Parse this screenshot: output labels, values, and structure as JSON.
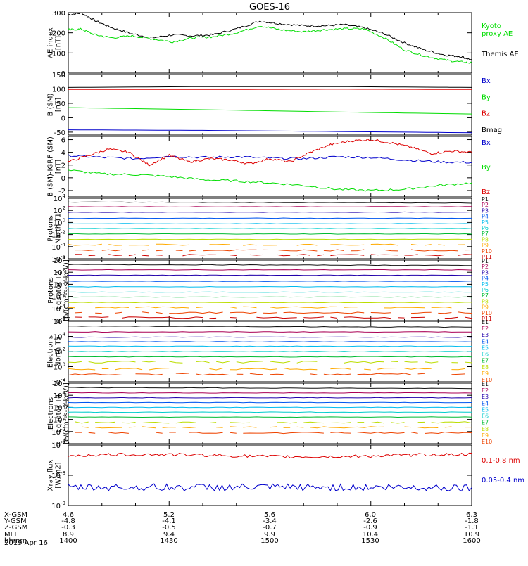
{
  "title": "GOES-16",
  "date_label": "2019 Apr 16",
  "orbit": {
    "row_labels": [
      "X-GSM",
      "Y-GSM",
      "Z-GSM",
      "MLT",
      "hhmm"
    ],
    "columns": [
      [
        "4.6",
        "-4.8",
        "-0.3",
        "8.9",
        "1400"
      ],
      [
        "5.2",
        "-4.1",
        "-0.5",
        "9.4",
        "1430"
      ],
      [
        "5.6",
        "-3.4",
        "-0.7",
        "9.9",
        "1500"
      ],
      [
        "6.0",
        "-2.6",
        "-0.9",
        "10.4",
        "1530"
      ],
      [
        "6.3",
        "-1.8",
        "-1.1",
        "10.9",
        "1600"
      ]
    ]
  },
  "colors": {
    "black": "#000000",
    "green": "#00dd00",
    "red": "#dd0000",
    "blue": "#0000cc",
    "flux": [
      "#111111",
      "#aa0055",
      "#2200aa",
      "#0055ee",
      "#00bbee",
      "#00cccc",
      "#00bb33",
      "#bbdd00",
      "#ffaa00",
      "#ee4400",
      "#cc0000"
    ]
  },
  "chart_data": [
    {
      "type": "line",
      "ylabel": [
        "AE index",
        "[nT]"
      ],
      "ylim": [
        0,
        300
      ],
      "yticks": [
        "0",
        "100",
        "200",
        "300"
      ],
      "xlim": [
        0,
        120
      ],
      "legend": [
        {
          "text": "Kyoto",
          "color": "green"
        },
        {
          "text": "proxy AE",
          "color": "green"
        },
        {
          "text": "Themis AE",
          "color": "black"
        }
      ],
      "series": [
        {
          "name": "Themis AE",
          "color": "black",
          "x": [
            0,
            4,
            8,
            13,
            19,
            25,
            31,
            37,
            43,
            50,
            57,
            63,
            70,
            76,
            82,
            88,
            94,
            100,
            106,
            112,
            117,
            120
          ],
          "y": [
            290,
            298,
            260,
            225,
            195,
            175,
            190,
            185,
            190,
            220,
            258,
            245,
            235,
            235,
            240,
            225,
            195,
            150,
            115,
            90,
            82,
            65
          ]
        },
        {
          "name": "Kyoto proxy AE",
          "color": "green",
          "x": [
            0,
            4,
            8,
            13,
            19,
            25,
            31,
            37,
            43,
            50,
            57,
            63,
            70,
            76,
            82,
            88,
            94,
            100,
            106,
            112,
            117,
            120
          ],
          "y": [
            215,
            218,
            190,
            175,
            185,
            170,
            155,
            175,
            180,
            200,
            235,
            215,
            205,
            215,
            220,
            220,
            175,
            115,
            85,
            65,
            55,
            50
          ]
        }
      ]
    },
    {
      "type": "line",
      "ylabel": [
        "B (SM)",
        "[nT]"
      ],
      "ylim": [
        -60,
        150
      ],
      "yticks": [
        "-50",
        "0",
        "50",
        "100",
        "150"
      ],
      "xlim": [
        0,
        120
      ],
      "legend": [
        {
          "text": "Bx",
          "color": "blue"
        },
        {
          "text": "By",
          "color": "green"
        },
        {
          "text": "Bz",
          "color": "red"
        },
        {
          "text": "Bmag",
          "color": "black"
        }
      ],
      "series": [
        {
          "name": "Bmag",
          "color": "black",
          "x": [
            0,
            40,
            80,
            120
          ],
          "y": [
            105,
            108,
            108,
            105
          ]
        },
        {
          "name": "Bz",
          "color": "red",
          "x": [
            0,
            40,
            80,
            120
          ],
          "y": [
            98,
            98,
            99,
            98
          ]
        },
        {
          "name": "By",
          "color": "green",
          "x": [
            0,
            40,
            80,
            120
          ],
          "y": [
            35,
            28,
            20,
            13
          ]
        },
        {
          "name": "Bx",
          "color": "blue",
          "x": [
            0,
            40,
            80,
            120
          ],
          "y": [
            -42,
            -44,
            -48,
            -52
          ]
        }
      ]
    },
    {
      "type": "line",
      "ylabel": [
        "B (SM)-IGRF (SM)",
        "[nT]"
      ],
      "ylim": [
        -3,
        6.5
      ],
      "yticks": [
        "-2",
        "0",
        "2",
        "4",
        "6"
      ],
      "xlim": [
        0,
        120
      ],
      "legend": [
        {
          "text": "Bx",
          "color": "blue"
        },
        {
          "text": "By",
          "color": "green"
        },
        {
          "text": "Bz",
          "color": "red"
        }
      ],
      "series": [
        {
          "name": "Bx",
          "color": "blue",
          "x": [
            0,
            10,
            20,
            30,
            40,
            50,
            60,
            70,
            80,
            90,
            100,
            110,
            120
          ],
          "y": [
            3.5,
            3.2,
            3.0,
            3.4,
            3.2,
            3.3,
            3.1,
            3.0,
            3.3,
            3.2,
            2.8,
            2.5,
            2.4
          ]
        },
        {
          "name": "By",
          "color": "green",
          "x": [
            0,
            10,
            20,
            30,
            40,
            50,
            60,
            70,
            80,
            90,
            100,
            110,
            120
          ],
          "y": [
            1.2,
            0.6,
            0.5,
            0.2,
            -0.3,
            -0.5,
            -0.8,
            -1.2,
            -1.8,
            -2.0,
            -1.8,
            -1.2,
            -0.8
          ]
        },
        {
          "name": "Bz",
          "color": "red",
          "x": [
            0,
            6,
            12,
            18,
            24,
            30,
            36,
            42,
            48,
            54,
            60,
            66,
            72,
            78,
            84,
            90,
            96,
            102,
            108,
            114,
            120
          ],
          "y": [
            2.5,
            3.5,
            4.5,
            4.0,
            2.0,
            3.5,
            2.5,
            3.0,
            2.8,
            2.2,
            3.0,
            2.5,
            4.0,
            5.2,
            5.8,
            6.0,
            5.5,
            4.8,
            3.8,
            4.2,
            4.0
          ]
        }
      ]
    },
    {
      "type": "line",
      "log": true,
      "ylabel": [
        "Protons",
        "North T1"
      ],
      "ylim": [
        -6,
        4
      ],
      "ytick_exps": [
        "-6",
        "-4",
        "-2",
        "0",
        "2",
        "4"
      ],
      "xlim": [
        0,
        120
      ],
      "legend": [
        "P1",
        "P2",
        "P3",
        "P4",
        "P5",
        "P6",
        "P7",
        "P8",
        "P9",
        "P10",
        "P11"
      ],
      "levels": [
        3.3,
        2.6,
        1.7,
        0.7,
        -0.2,
        -1.0,
        -1.9,
        -2.8,
        -3.7,
        -4.6,
        -5.4
      ]
    },
    {
      "type": "line",
      "log": true,
      "ylabel": [
        "Protons",
        "Equator T2",
        "[p/(cm²-s-sr-keV)]"
      ],
      "ylim": [
        -6,
        4
      ],
      "ytick_exps": [
        "-6",
        "-4",
        "-2",
        "0",
        "2",
        "4"
      ],
      "xlim": [
        0,
        120
      ],
      "legend": [
        "P1",
        "P2",
        "P3",
        "P4",
        "P5",
        "P6",
        "P7",
        "P8",
        "P9",
        "P10",
        "P11"
      ],
      "levels": [
        3.2,
        2.4,
        1.5,
        0.5,
        -0.4,
        -1.3,
        -2.1,
        -3.0,
        -3.8,
        -4.7,
        -5.5
      ]
    },
    {
      "type": "line",
      "log": true,
      "ylabel": [
        "Electrons",
        "North T3"
      ],
      "ylim": [
        -2,
        6
      ],
      "ytick_exps": [
        "-2",
        "0",
        "2",
        "4",
        "6"
      ],
      "xlim": [
        0,
        120
      ],
      "legend": [
        "E1",
        "E2",
        "E3",
        "E4",
        "E5",
        "E6",
        "E7",
        "E8",
        "E9",
        "E10"
      ],
      "levels": [
        5.3,
        4.6,
        3.9,
        3.3,
        2.7,
        2.0,
        1.3,
        0.6,
        -0.3,
        -1.0
      ]
    },
    {
      "type": "line",
      "log": true,
      "ylabel": [
        "Electrons",
        "Equator T4",
        "[e/(cm²-s-sr-keV)]"
      ],
      "ylim": [
        -4,
        6
      ],
      "ytick_exps": [
        "-4",
        "-2",
        "0",
        "2",
        "4",
        "6"
      ],
      "xlim": [
        0,
        120
      ],
      "legend": [
        "E1",
        "E2",
        "E3",
        "E4",
        "E5",
        "E6",
        "E7",
        "E8",
        "E9",
        "E10"
      ],
      "levels": [
        5.2,
        4.4,
        3.6,
        2.8,
        2.0,
        1.2,
        0.4,
        -0.5,
        -1.3,
        -2.2
      ]
    },
    {
      "type": "line",
      "log": true,
      "ylabel": [
        "Xray flux",
        "[W/m2]"
      ],
      "ylim": [
        -9,
        -7
      ],
      "ytick_exps": [
        "-9",
        "-8",
        "-7"
      ],
      "xlim": [
        0,
        120
      ],
      "legend": [
        {
          "text": "0.1-0.8 nm",
          "color": "red"
        },
        {
          "text": "0.05-0.4 nm",
          "color": "blue"
        }
      ],
      "series": [
        {
          "name": "0.1-0.8 nm",
          "color": "red",
          "base": -7.35
        },
        {
          "name": "0.05-0.4 nm",
          "color": "blue",
          "base": -8.4
        }
      ]
    }
  ]
}
